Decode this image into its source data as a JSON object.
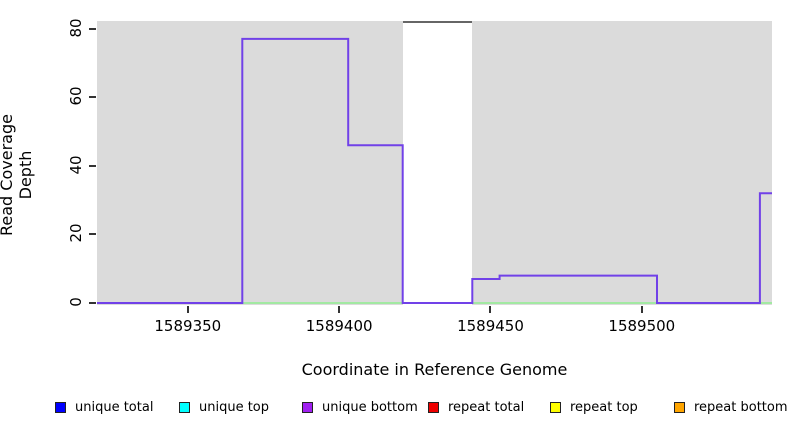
{
  "chart_data": {
    "type": "line",
    "subtype": "step-coverage-plot",
    "title": "",
    "xlabel": "Coordinate in Reference Genome",
    "ylabel": "Read Coverage Depth",
    "xlim": [
      1589320,
      1589543
    ],
    "ylim": [
      0,
      82
    ],
    "x_ticks": [
      {
        "value": 1589350,
        "label": "1589350"
      },
      {
        "value": 1589400,
        "label": "1589400"
      },
      {
        "value": 1589450,
        "label": "1589450"
      },
      {
        "value": 1589500,
        "label": "1589500"
      }
    ],
    "y_ticks": [
      {
        "value": 0,
        "label": "0"
      },
      {
        "value": 20,
        "label": "20"
      },
      {
        "value": 40,
        "label": "40"
      },
      {
        "value": 60,
        "label": "60"
      },
      {
        "value": 80,
        "label": "80"
      }
    ],
    "grid": false,
    "plot_background_color": "#DBDBDB",
    "background_regions": [
      {
        "name": "covered-region-left",
        "x0": 1589320,
        "x1": 1589421,
        "color": "#DBDBDB"
      },
      {
        "name": "gap-region",
        "x0": 1589421,
        "x1": 1589444,
        "color": "#FFFFFF",
        "top_border_color": "#666666"
      },
      {
        "name": "covered-region-right",
        "x0": 1589444,
        "x1": 1589543,
        "color": "#DBDBDB"
      }
    ],
    "series": [
      {
        "name": "zero-baseline",
        "color": "#90EE90",
        "width": 1.5,
        "steps": [
          [
            1589320,
            0
          ]
        ]
      },
      {
        "name": "unique-bottom-coverage",
        "color": "#7141E8",
        "width": 2,
        "steps": [
          [
            1589320,
            0
          ],
          [
            1589368,
            77
          ],
          [
            1589403,
            46
          ],
          [
            1589421,
            0
          ],
          [
            1589444,
            7
          ],
          [
            1589453,
            8
          ],
          [
            1589505,
            0
          ],
          [
            1589539,
            32
          ]
        ]
      }
    ],
    "legend_position": "bottom",
    "legend": [
      {
        "label": "unique total",
        "color": "#0000FF"
      },
      {
        "label": "unique top",
        "color": "#00FFFF"
      },
      {
        "label": "unique bottom",
        "color": "#A020F0"
      },
      {
        "label": "repeat total",
        "color": "#EE0000"
      },
      {
        "label": "repeat top",
        "color": "#FFFF00"
      },
      {
        "label": "repeat bottom",
        "color": "#FFA500"
      }
    ]
  }
}
